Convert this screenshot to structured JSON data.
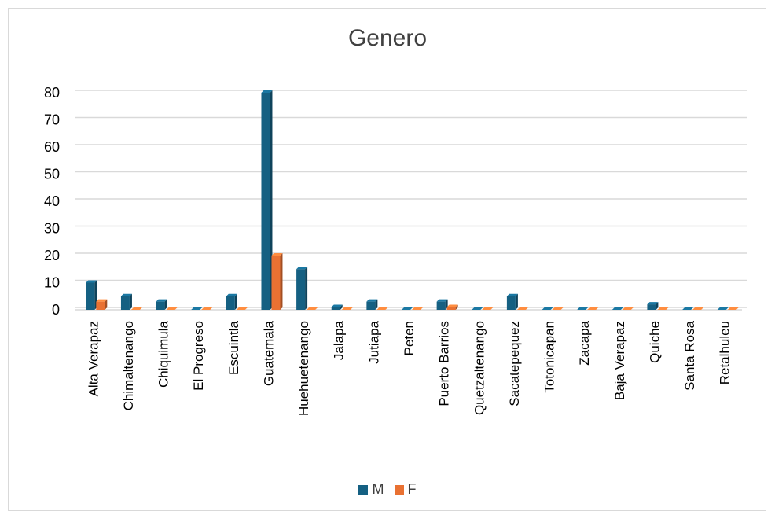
{
  "chart_data": {
    "type": "bar",
    "title": "Genero",
    "categories": [
      "Alta Verapaz",
      "Chimaltenango",
      "Chiquimula",
      "El Progreso",
      "Escuintla",
      "Guatemala",
      "Huehuetenango",
      "Jalapa",
      "Jutiapa",
      "Peten",
      "Puerto Barrios",
      "Quetzaltenango",
      "Sacatepequez",
      "Totonicapan",
      "Zacapa",
      "Baja Verapaz",
      "Quiche",
      "Santa Rosa",
      "Retalhuleu"
    ],
    "series": [
      {
        "name": "M",
        "color": "#156082",
        "values": [
          10,
          5,
          3,
          0,
          5,
          80,
          15,
          1,
          3,
          0,
          3,
          0,
          5,
          0,
          0,
          0,
          2,
          0,
          0
        ]
      },
      {
        "name": "F",
        "color": "#E97132",
        "values": [
          3,
          0,
          0,
          0,
          0,
          20,
          0,
          0,
          0,
          0,
          1,
          0,
          0,
          0,
          0,
          0,
          0,
          0,
          0
        ]
      }
    ],
    "ylim": [
      0,
      80
    ],
    "yticks": [
      0,
      10,
      20,
      30,
      40,
      50,
      60,
      70,
      80
    ],
    "xlabel": "",
    "ylabel": "",
    "grid": true,
    "legend_position": "bottom",
    "style": "3d-clustered-column"
  }
}
